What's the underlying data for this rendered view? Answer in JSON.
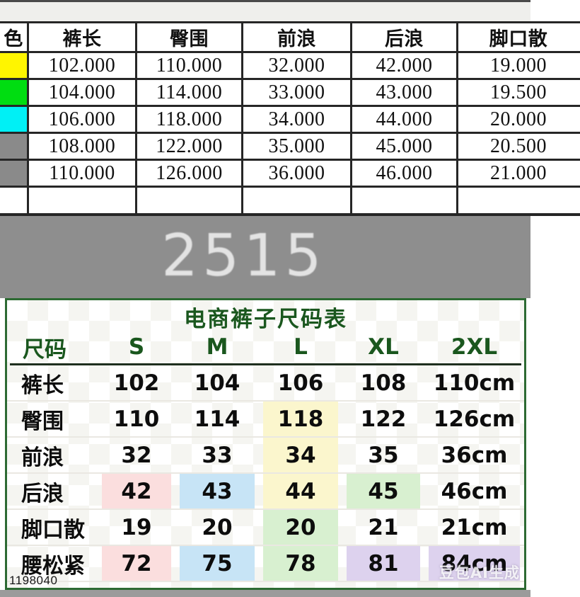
{
  "top_sheet": {
    "columns": [
      "色",
      "裤长",
      "臀围",
      "前浪",
      "后浪",
      "脚口散"
    ],
    "rows": [
      {
        "swatch": "#fff500",
        "values": [
          "102.000",
          "110.000",
          "32.000",
          "42.000",
          "19.000"
        ]
      },
      {
        "swatch": "#00dd11",
        "values": [
          "104.000",
          "114.000",
          "33.000",
          "43.000",
          "19.500"
        ]
      },
      {
        "swatch": "#00f0f5",
        "values": [
          "106.000",
          "118.000",
          "34.000",
          "44.000",
          "20.000"
        ]
      },
      {
        "swatch": "#8a8a8a",
        "values": [
          "108.000",
          "122.000",
          "35.000",
          "45.000",
          "20.500"
        ]
      },
      {
        "swatch": "#8a8a8a",
        "values": [
          "110.000",
          "126.000",
          "36.000",
          "46.000",
          "21.000"
        ]
      }
    ]
  },
  "divider": {
    "label": "2515",
    "band_color": "#8e8e8e"
  },
  "size_chart": {
    "title": "电商裤子尺码表",
    "header": [
      "尺码",
      "S",
      "M",
      "L",
      "XL",
      "2XL"
    ],
    "rows": [
      {
        "label": "裤长",
        "values": [
          "102",
          "104",
          "106",
          "108",
          "110cm"
        ],
        "bg": [
          "",
          "",
          "",
          "",
          ""
        ]
      },
      {
        "label": "臀围",
        "values": [
          "110",
          "114",
          "118",
          "122",
          "126cm"
        ],
        "bg": [
          "",
          "",
          "#fbf6cd",
          "",
          ""
        ]
      },
      {
        "label": "前浪",
        "values": [
          "32",
          "33",
          "34",
          "35",
          "36cm"
        ],
        "bg": [
          "",
          "",
          "#fbf6cd",
          "",
          ""
        ]
      },
      {
        "label": "后浪",
        "values": [
          "42",
          "43",
          "44",
          "45",
          "46cm"
        ],
        "bg": [
          "#fbdede",
          "#c7e4f6",
          "#fbf6cd",
          "#d8f0d0",
          ""
        ]
      },
      {
        "label": "脚口散",
        "values": [
          "19",
          "20",
          "20",
          "21",
          "21cm"
        ],
        "bg": [
          "",
          "",
          "#d8f0d0",
          "",
          ""
        ]
      },
      {
        "label": "腰松紧",
        "values": [
          "72",
          "75",
          "78",
          "81",
          "84cm"
        ],
        "bg": [
          "#fbdede",
          "#c7e4f6",
          "#d8f0d0",
          "#ddd2ee",
          "#ddd2ee"
        ]
      }
    ],
    "highlight_colors": {
      "pink": "#fbdede",
      "blue": "#c7e4f6",
      "yellow": "#fbf6cd",
      "green": "#d8f0d0",
      "purple": "#ddd2ee"
    },
    "accent_green": "#1a571e",
    "border_green": "#2d6a33",
    "product_code": "1198040",
    "watermark": "豆包AI生成"
  }
}
